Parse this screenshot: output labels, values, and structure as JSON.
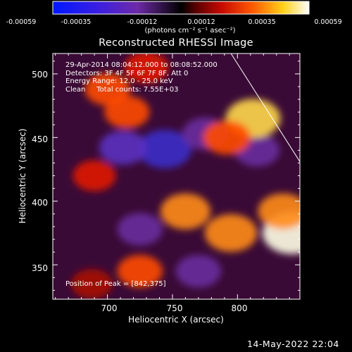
{
  "chart_data": {
    "type": "heatmap",
    "title": "Reconstructed RHESSI Image",
    "xlabel": "Heliocentric X (arcsec)",
    "ylabel": "Heliocentric Y (arcsec)",
    "xlim": [
      658,
      848
    ],
    "ylim": [
      323,
      516
    ],
    "x_ticks": [
      "700",
      "750",
      "800"
    ],
    "y_ticks": [
      "350",
      "400",
      "450",
      "500"
    ],
    "colorbar": {
      "ticks": [
        "-0.00059",
        "-0.00035",
        "-0.00012",
        "0.00012",
        "0.00035",
        "0.00059"
      ],
      "range": [
        -0.00059,
        0.00059
      ],
      "units_label": "(photons cm⁻² s⁻¹ asec⁻²)",
      "colormap": "blue-purple-black-red-yellow-white"
    },
    "annotations": {
      "time_range": "29-Apr-2014 08:04:12.000 to 08:08:52.000",
      "detectors": "Detectors: 3F 4F 5F 6F 7F 8F, Att 0",
      "energy": "Energy Range: 12.0 - 25.0 keV",
      "method": "Clean     Total counts: 7.55E+03",
      "peak": "Position of Peak = [842,375]"
    },
    "peak_position": [
      842,
      375
    ],
    "limb_line": {
      "x": [
        795,
        848
      ],
      "y": [
        516,
        431
      ]
    },
    "features": [
      {
        "x": 744,
        "y": 441,
        "value": -0.00048
      },
      {
        "x": 712,
        "y": 442,
        "value": -0.00035
      },
      {
        "x": 775,
        "y": 453,
        "value": -0.0003
      },
      {
        "x": 725,
        "y": 378,
        "value": -0.0003
      },
      {
        "x": 770,
        "y": 345,
        "value": -0.0003
      },
      {
        "x": 815,
        "y": 440,
        "value": -0.0003
      },
      {
        "x": 812,
        "y": 465,
        "value": 0.0005
      },
      {
        "x": 792,
        "y": 450,
        "value": 0.00035
      },
      {
        "x": 715,
        "y": 470,
        "value": 0.0003
      },
      {
        "x": 700,
        "y": 488,
        "value": 0.0003
      },
      {
        "x": 730,
        "y": 505,
        "value": 0.00028
      },
      {
        "x": 690,
        "y": 420,
        "value": 0.00025
      },
      {
        "x": 760,
        "y": 392,
        "value": 0.0004
      },
      {
        "x": 795,
        "y": 375,
        "value": 0.00045
      },
      {
        "x": 842,
        "y": 375,
        "value": 0.00059
      },
      {
        "x": 725,
        "y": 345,
        "value": 0.0003
      },
      {
        "x": 688,
        "y": 335,
        "value": 0.00022
      },
      {
        "x": 835,
        "y": 392,
        "value": 0.0004
      }
    ]
  },
  "footer": {
    "date": "14-May-2022 22:04"
  }
}
